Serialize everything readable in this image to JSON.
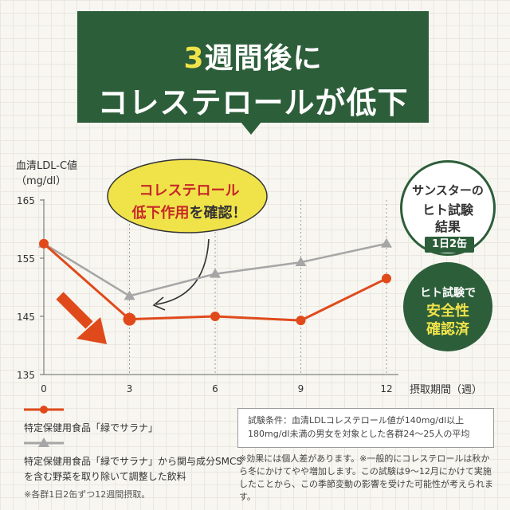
{
  "banner": {
    "headline_accent": "3",
    "headline_line1_rest": "週間後に",
    "headline_line2": "コレステロールが低下"
  },
  "bubble": {
    "line1": "コレステロール",
    "line2_red": "低下作用",
    "line2_rest": "を確認！"
  },
  "badge_trial": {
    "line1": "サンスターの",
    "line2": "ヒト試験",
    "line3": "結果",
    "tag": "1日2缶"
  },
  "badge_safety": {
    "line1": "ヒト試験で",
    "line2": "安全性",
    "line3": "確認済"
  },
  "legend": {
    "item1": "特定保健用食品「緑でサラナ」",
    "item2": "特定保健用食品「緑でサラナ」から関与成分SMCSを含む野菜を取り除いて調整した飲料",
    "note": "※各群1日2缶ずつ12週間摂取。"
  },
  "conditions": {
    "line1": "試験条件：血清LDLコレステロール値が140mg/dl以上",
    "line2": "180mg/dl未満の男女を対象とした各群24～25人の平均"
  },
  "note_right": "※効果には個人差があります。※一般的にコレステロールは秋から冬にかけてやや増加します。この試験は9～12月にかけて実施したことから、この季節変動の影響を受けた可能性が考えられます。",
  "colors": {
    "green": "#2d5e3a",
    "orange_series": "#e04a1b",
    "gray_series": "#a6a6a6",
    "bubble_fill": "#f0e34a",
    "accent_red": "#c62828"
  },
  "chart_data": {
    "type": "line",
    "title": "",
    "ylabel": "血清LDL-C値",
    "yunit": "（mg/dl）",
    "xlabel": "摂取期間（週）",
    "x": [
      0,
      3,
      6,
      9,
      12
    ],
    "xticks": [
      "0",
      "3",
      "6",
      "9",
      "12"
    ],
    "ylim": [
      135,
      165
    ],
    "yticks": [
      "135",
      "145",
      "155",
      "165"
    ],
    "grid": "vertical",
    "series": [
      {
        "name": "特定保健用食品「緑でサラナ」",
        "color": "#e04a1b",
        "marker": "circle",
        "values": [
          157.5,
          144.5,
          145,
          144.3,
          151.5
        ]
      },
      {
        "name": "特定保健用食品「緑でサラナ」から関与成分SMCSを含む野菜を取り除いて調整した飲料",
        "color": "#a6a6a6",
        "marker": "triangle",
        "values": [
          157.5,
          148.5,
          152.3,
          154.3,
          157.5
        ]
      }
    ]
  }
}
